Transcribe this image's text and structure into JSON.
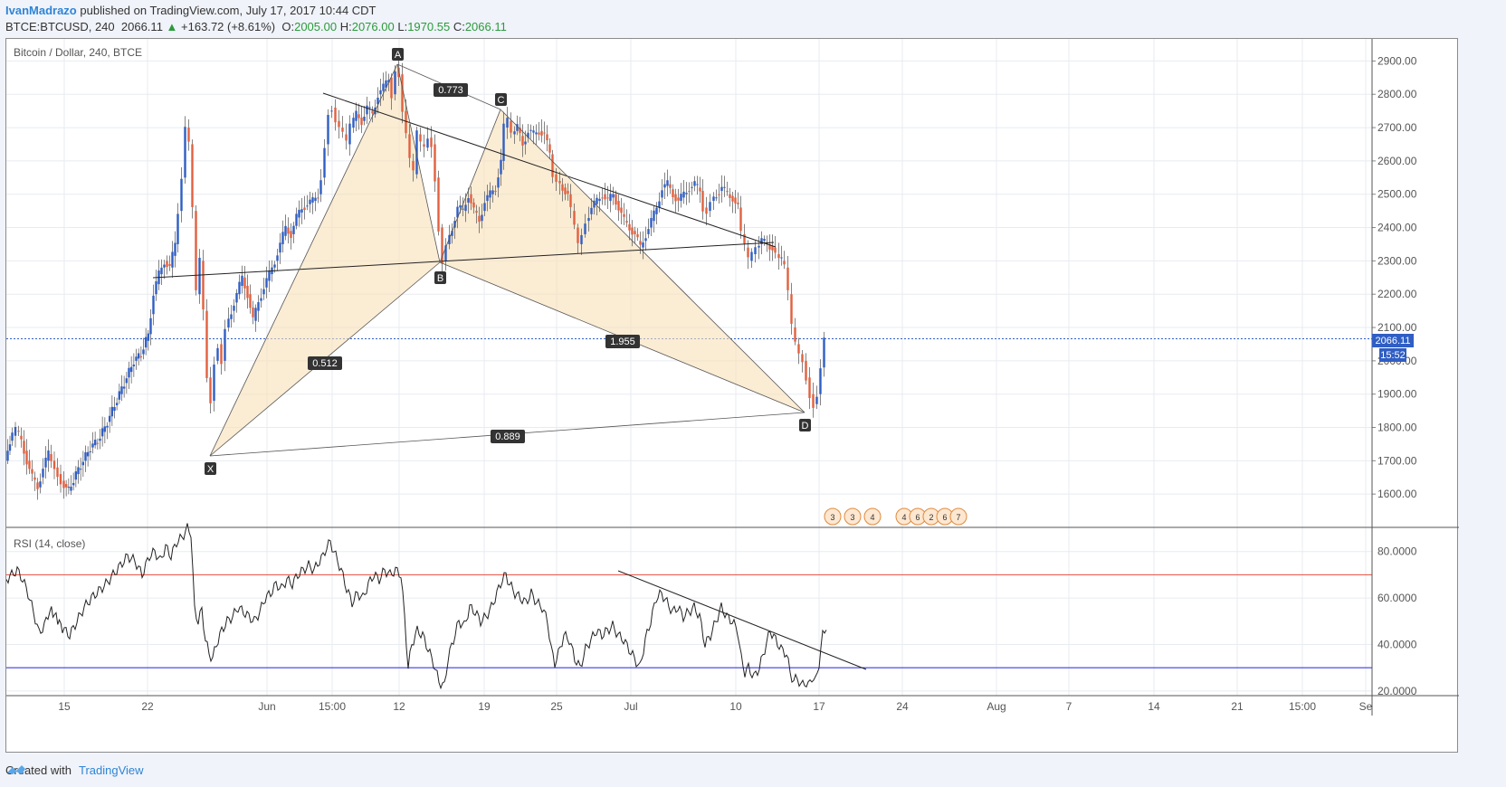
{
  "header": {
    "author": "IvanMadrazo",
    "published_text": "published on TradingView.com, July 17, 2017 10:44 CDT",
    "symbol": "BTCE:BTCUSD, 240",
    "last": "2066.11",
    "change": "+163.72 (+8.61%)",
    "o_label": "O:",
    "o": "2005.00",
    "h_label": "H:",
    "h": "2076.00",
    "l_label": "L:",
    "l": "1970.55",
    "c_label": "C:",
    "c": "2066.11",
    "up_color": "#2a9b3a"
  },
  "footer": {
    "created_with": "Created with",
    "brand": "TradingView",
    "icon": "tradingview-logo-icon"
  },
  "chart_data": [
    {
      "type": "candlestick",
      "title": "Bitcoin / Dollar, 240, BTCE",
      "ylim": [
        1500,
        2950
      ],
      "y_ticks": [
        "2900.00",
        "2800.00",
        "2700.00",
        "2600.00",
        "2500.00",
        "2400.00",
        "2300.00",
        "2200.00",
        "2100.00",
        "2000.00",
        "1900.00",
        "1800.00",
        "1700.00",
        "1600.00"
      ],
      "last_price_label": "2066.11",
      "countdown_label": "15:52",
      "last_price": 2066.11,
      "up_color": "#2f5ec4",
      "down_color": "#e2603f",
      "x_ticks": [
        "15",
        "22",
        "Jun",
        "15:00",
        "12",
        "19",
        "25",
        "Jul",
        "10",
        "17",
        "24",
        "Aug",
        "7",
        "14",
        "21",
        "15:00",
        "Se"
      ],
      "price_path": [
        [
          0,
          1700
        ],
        [
          5,
          1760
        ],
        [
          12,
          1790
        ],
        [
          18,
          1760
        ],
        [
          24,
          1700
        ],
        [
          30,
          1650
        ],
        [
          36,
          1620
        ],
        [
          42,
          1680
        ],
        [
          48,
          1720
        ],
        [
          55,
          1680
        ],
        [
          62,
          1640
        ],
        [
          70,
          1610
        ],
        [
          78,
          1660
        ],
        [
          86,
          1700
        ],
        [
          94,
          1740
        ],
        [
          102,
          1760
        ],
        [
          110,
          1800
        ],
        [
          118,
          1850
        ],
        [
          126,
          1900
        ],
        [
          134,
          1950
        ],
        [
          142,
          2000
        ],
        [
          150,
          2020
        ],
        [
          158,
          2080
        ],
        [
          164,
          2200
        ],
        [
          170,
          2260
        ],
        [
          176,
          2300
        ],
        [
          182,
          2280
        ],
        [
          188,
          2350
        ],
        [
          192,
          2450
        ],
        [
          196,
          2550
        ],
        [
          200,
          2700
        ],
        [
          204,
          2650
        ],
        [
          208,
          2450
        ],
        [
          212,
          2200
        ],
        [
          216,
          2300
        ],
        [
          220,
          2150
        ],
        [
          224,
          1950
        ],
        [
          228,
          1880
        ],
        [
          232,
          2000
        ],
        [
          236,
          2050
        ],
        [
          240,
          2000
        ],
        [
          244,
          2100
        ],
        [
          250,
          2150
        ],
        [
          256,
          2200
        ],
        [
          262,
          2250
        ],
        [
          268,
          2200
        ],
        [
          274,
          2120
        ],
        [
          280,
          2180
        ],
        [
          286,
          2220
        ],
        [
          292,
          2260
        ],
        [
          298,
          2300
        ],
        [
          304,
          2350
        ],
        [
          310,
          2400
        ],
        [
          316,
          2380
        ],
        [
          322,
          2430
        ],
        [
          328,
          2460
        ],
        [
          334,
          2470
        ],
        [
          340,
          2480
        ],
        [
          346,
          2500
        ],
        [
          350,
          2550
        ],
        [
          354,
          2650
        ],
        [
          358,
          2750
        ],
        [
          362,
          2760
        ],
        [
          366,
          2720
        ],
        [
          370,
          2700
        ],
        [
          374,
          2680
        ],
        [
          378,
          2650
        ],
        [
          382,
          2700
        ],
        [
          388,
          2740
        ],
        [
          394,
          2720
        ],
        [
          400,
          2760
        ],
        [
          406,
          2740
        ],
        [
          412,
          2800
        ],
        [
          418,
          2820
        ],
        [
          424,
          2850
        ],
        [
          428,
          2800
        ],
        [
          432,
          2880
        ],
        [
          436,
          2860
        ],
        [
          440,
          2750
        ],
        [
          444,
          2680
        ],
        [
          448,
          2600
        ],
        [
          452,
          2560
        ],
        [
          456,
          2680
        ],
        [
          460,
          2650
        ],
        [
          464,
          2640
        ],
        [
          468,
          2670
        ],
        [
          472,
          2650
        ],
        [
          476,
          2550
        ],
        [
          480,
          2400
        ],
        [
          484,
          2300
        ],
        [
          488,
          2350
        ],
        [
          494,
          2400
        ],
        [
          500,
          2460
        ],
        [
          506,
          2450
        ],
        [
          512,
          2500
        ],
        [
          518,
          2450
        ],
        [
          524,
          2420
        ],
        [
          530,
          2480
        ],
        [
          536,
          2500
        ],
        [
          542,
          2520
        ],
        [
          548,
          2600
        ],
        [
          552,
          2700
        ],
        [
          556,
          2720
        ],
        [
          560,
          2680
        ],
        [
          566,
          2700
        ],
        [
          572,
          2650
        ],
        [
          578,
          2690
        ],
        [
          584,
          2680
        ],
        [
          590,
          2690
        ],
        [
          596,
          2680
        ],
        [
          602,
          2620
        ],
        [
          606,
          2560
        ],
        [
          610,
          2540
        ],
        [
          616,
          2520
        ],
        [
          622,
          2500
        ],
        [
          626,
          2450
        ],
        [
          630,
          2400
        ],
        [
          634,
          2350
        ],
        [
          638,
          2380
        ],
        [
          642,
          2420
        ],
        [
          648,
          2460
        ],
        [
          654,
          2480
        ],
        [
          660,
          2500
        ],
        [
          666,
          2480
        ],
        [
          672,
          2500
        ],
        [
          678,
          2460
        ],
        [
          684,
          2420
        ],
        [
          690,
          2400
        ],
        [
          696,
          2380
        ],
        [
          702,
          2340
        ],
        [
          708,
          2380
        ],
        [
          714,
          2420
        ],
        [
          720,
          2460
        ],
        [
          726,
          2520
        ],
        [
          732,
          2530
        ],
        [
          738,
          2500
        ],
        [
          744,
          2480
        ],
        [
          750,
          2500
        ],
        [
          756,
          2520
        ],
        [
          762,
          2530
        ],
        [
          768,
          2510
        ],
        [
          772,
          2460
        ],
        [
          776,
          2450
        ],
        [
          780,
          2480
        ],
        [
          786,
          2500
        ],
        [
          792,
          2520
        ],
        [
          798,
          2500
        ],
        [
          804,
          2490
        ],
        [
          810,
          2460
        ],
        [
          814,
          2380
        ],
        [
          818,
          2340
        ],
        [
          822,
          2300
        ],
        [
          826,
          2320
        ],
        [
          830,
          2340
        ],
        [
          836,
          2360
        ],
        [
          842,
          2350
        ],
        [
          848,
          2340
        ],
        [
          852,
          2320
        ],
        [
          858,
          2300
        ],
        [
          862,
          2280
        ],
        [
          866,
          2200
        ],
        [
          870,
          2100
        ],
        [
          874,
          2050
        ],
        [
          878,
          2020
        ],
        [
          882,
          2000
        ],
        [
          886,
          1950
        ],
        [
          890,
          1900
        ],
        [
          894,
          1870
        ],
        [
          898,
          1900
        ],
        [
          902,
          1980
        ],
        [
          906,
          2066
        ]
      ]
    },
    {
      "type": "line",
      "title": "RSI (14, close)",
      "ylim": [
        18,
        90
      ],
      "y_ticks": [
        "80.0000",
        "60.0000",
        "40.0000",
        "20.0000"
      ],
      "overbought": 70,
      "oversold": 30,
      "overbought_color": "#e74c3c",
      "oversold_color": "#2222dd",
      "values": [
        [
          0,
          68
        ],
        [
          6,
          70
        ],
        [
          12,
          72
        ],
        [
          18,
          68
        ],
        [
          24,
          62
        ],
        [
          30,
          54
        ],
        [
          36,
          45
        ],
        [
          42,
          48
        ],
        [
          48,
          55
        ],
        [
          55,
          52
        ],
        [
          62,
          47
        ],
        [
          70,
          44
        ],
        [
          78,
          50
        ],
        [
          86,
          56
        ],
        [
          94,
          60
        ],
        [
          102,
          63
        ],
        [
          110,
          66
        ],
        [
          118,
          70
        ],
        [
          126,
          74
        ],
        [
          134,
          78
        ],
        [
          142,
          76
        ],
        [
          150,
          70
        ],
        [
          158,
          78
        ],
        [
          164,
          80
        ],
        [
          170,
          76
        ],
        [
          176,
          82
        ],
        [
          182,
          78
        ],
        [
          188,
          84
        ],
        [
          194,
          86
        ],
        [
          200,
          90
        ],
        [
          204,
          88
        ],
        [
          208,
          55
        ],
        [
          212,
          50
        ],
        [
          216,
          55
        ],
        [
          220,
          42
        ],
        [
          224,
          36
        ],
        [
          228,
          34
        ],
        [
          232,
          40
        ],
        [
          238,
          46
        ],
        [
          244,
          50
        ],
        [
          250,
          52
        ],
        [
          256,
          56
        ],
        [
          262,
          54
        ],
        [
          268,
          52
        ],
        [
          274,
          50
        ],
        [
          280,
          54
        ],
        [
          286,
          60
        ],
        [
          292,
          62
        ],
        [
          298,
          66
        ],
        [
          304,
          64
        ],
        [
          310,
          68
        ],
        [
          316,
          66
        ],
        [
          322,
          70
        ],
        [
          328,
          72
        ],
        [
          334,
          74
        ],
        [
          340,
          72
        ],
        [
          346,
          76
        ],
        [
          350,
          78
        ],
        [
          354,
          82
        ],
        [
          358,
          84
        ],
        [
          362,
          80
        ],
        [
          366,
          76
        ],
        [
          370,
          72
        ],
        [
          376,
          64
        ],
        [
          382,
          58
        ],
        [
          388,
          62
        ],
        [
          394,
          60
        ],
        [
          400,
          66
        ],
        [
          406,
          70
        ],
        [
          412,
          68
        ],
        [
          418,
          72
        ],
        [
          424,
          70
        ],
        [
          430,
          72
        ],
        [
          436,
          70
        ],
        [
          440,
          52
        ],
        [
          444,
          30
        ],
        [
          448,
          40
        ],
        [
          454,
          46
        ],
        [
          460,
          44
        ],
        [
          466,
          38
        ],
        [
          472,
          32
        ],
        [
          478,
          24
        ],
        [
          484,
          22
        ],
        [
          488,
          34
        ],
        [
          494,
          42
        ],
        [
          500,
          50
        ],
        [
          506,
          48
        ],
        [
          512,
          56
        ],
        [
          518,
          54
        ],
        [
          524,
          50
        ],
        [
          530,
          52
        ],
        [
          536,
          56
        ],
        [
          542,
          62
        ],
        [
          548,
          68
        ],
        [
          552,
          70
        ],
        [
          556,
          66
        ],
        [
          562,
          62
        ],
        [
          568,
          60
        ],
        [
          574,
          58
        ],
        [
          580,
          62
        ],
        [
          586,
          58
        ],
        [
          592,
          56
        ],
        [
          598,
          50
        ],
        [
          602,
          38
        ],
        [
          606,
          32
        ],
        [
          610,
          36
        ],
        [
          616,
          44
        ],
        [
          622,
          42
        ],
        [
          628,
          34
        ],
        [
          634,
          30
        ],
        [
          640,
          38
        ],
        [
          646,
          42
        ],
        [
          652,
          46
        ],
        [
          658,
          44
        ],
        [
          664,
          46
        ],
        [
          670,
          48
        ],
        [
          676,
          44
        ],
        [
          682,
          42
        ],
        [
          688,
          38
        ],
        [
          694,
          34
        ],
        [
          700,
          30
        ],
        [
          706,
          42
        ],
        [
          712,
          50
        ],
        [
          718,
          60
        ],
        [
          724,
          62
        ],
        [
          730,
          58
        ],
        [
          736,
          54
        ],
        [
          742,
          56
        ],
        [
          748,
          52
        ],
        [
          754,
          54
        ],
        [
          760,
          56
        ],
        [
          766,
          52
        ],
        [
          772,
          40
        ],
        [
          778,
          44
        ],
        [
          784,
          50
        ],
        [
          790,
          56
        ],
        [
          796,
          52
        ],
        [
          802,
          50
        ],
        [
          808,
          46
        ],
        [
          812,
          34
        ],
        [
          816,
          28
        ],
        [
          820,
          30
        ],
        [
          826,
          26
        ],
        [
          832,
          30
        ],
        [
          838,
          38
        ],
        [
          844,
          46
        ],
        [
          850,
          42
        ],
        [
          856,
          38
        ],
        [
          862,
          36
        ],
        [
          866,
          28
        ],
        [
          870,
          24
        ],
        [
          874,
          26
        ],
        [
          878,
          22
        ],
        [
          882,
          24
        ],
        [
          886,
          22
        ],
        [
          890,
          26
        ],
        [
          894,
          24
        ],
        [
          898,
          32
        ],
        [
          902,
          44
        ],
        [
          906,
          48
        ]
      ]
    }
  ],
  "pattern": {
    "labels": {
      "X": "X",
      "A": "A",
      "B": "B",
      "C": "C",
      "D": "D"
    },
    "ratios": {
      "xb": "0.512",
      "ac": "0.773",
      "bd": "1.955",
      "xd": "0.889"
    }
  },
  "events_group1": {
    "items": [
      "3",
      "3",
      "4"
    ]
  },
  "events_group2": {
    "items": [
      "4",
      "6",
      "2",
      "6",
      "7"
    ]
  }
}
